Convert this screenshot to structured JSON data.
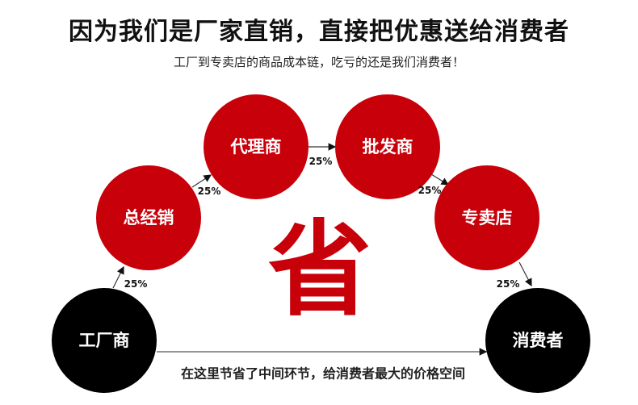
{
  "title": "因为我们是厂家直销，直接把优惠送给消费者",
  "subtitle": "工厂到专卖店的商品成本链，吃亏的还是我们消费者！",
  "colors": {
    "red": "#c8000a",
    "black": "#000000"
  },
  "nodes": [
    {
      "label": "工厂商",
      "color": "#000000"
    },
    {
      "label": "总经销",
      "color": "#c8000a"
    },
    {
      "label": "代理商",
      "color": "#c8000a"
    },
    {
      "label": "批发商",
      "color": "#c8000a"
    },
    {
      "label": "专卖店",
      "color": "#c8000a"
    },
    {
      "label": "消费者",
      "color": "#000000"
    }
  ],
  "markups": [
    "25%",
    "25%",
    "25%",
    "25%",
    "25%"
  ],
  "center_char": "省",
  "bottom_text": "在这里节省了中间环节，给消费者最大的价格空间"
}
